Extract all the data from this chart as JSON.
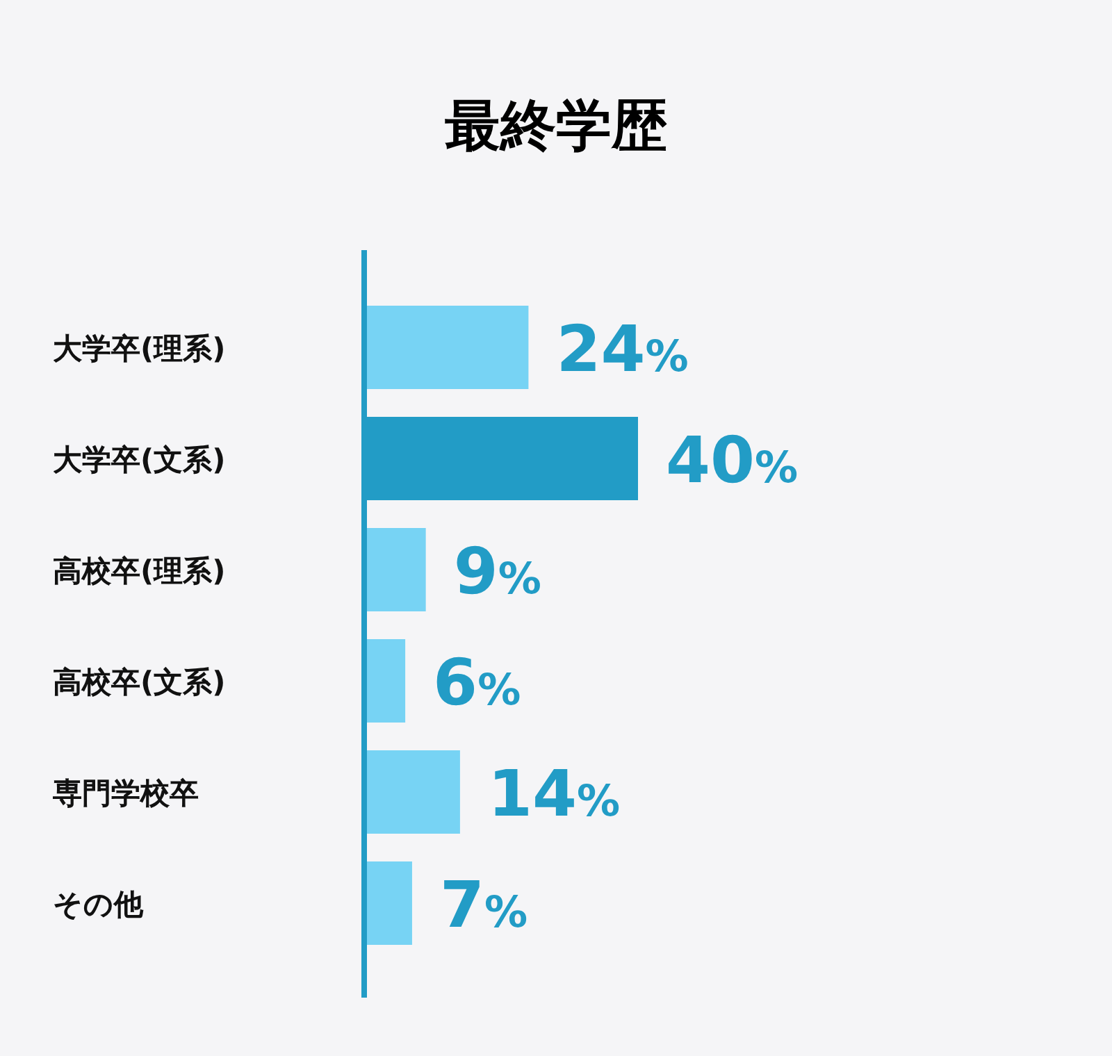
{
  "chart_data": {
    "type": "bar",
    "orientation": "horizontal",
    "title": "最終学歴",
    "categories": [
      "大学卒(理系)",
      "大学卒(文系)",
      "高校卒(理系)",
      "高校卒(文系)",
      "専門学校卒",
      "その他"
    ],
    "values": [
      24,
      40,
      9,
      6,
      14,
      7
    ],
    "colors": [
      "#77d3f4",
      "#229cc6",
      "#77d3f4",
      "#77d3f4",
      "#77d3f4",
      "#77d3f4"
    ],
    "value_labels": [
      "24%",
      "40%",
      "9%",
      "6%",
      "14%",
      "7%"
    ]
  }
}
